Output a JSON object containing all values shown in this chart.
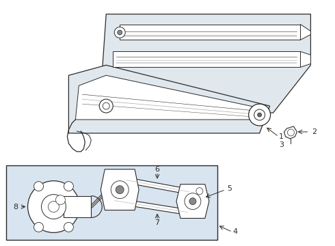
{
  "bg_color": "#ffffff",
  "line_color": "#2a2a2a",
  "blade_fill": "#e0e8ee",
  "box_fill": "#d8e4ef",
  "label_fontsize": 8,
  "arrow_lw": 0.7,
  "part_lw": 0.9
}
